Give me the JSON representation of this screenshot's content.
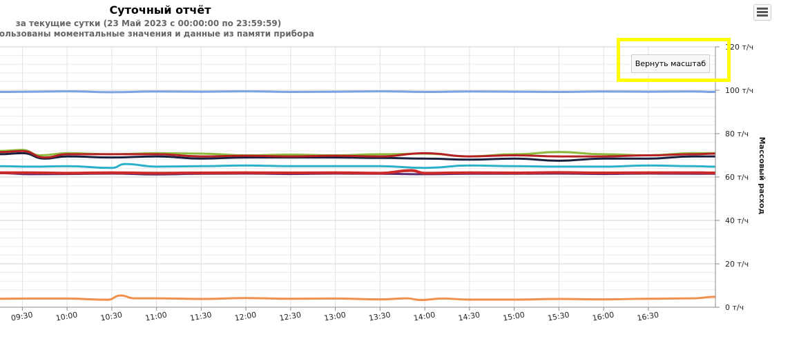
{
  "chart_data": {
    "type": "line",
    "title": "Суточный отчёт",
    "subtitle_1": "за текущие сутки (23 Май 2023 с 00:00:00 по 23:59:59)",
    "subtitle_2": "использованы моментальные значения и данные из памяти прибора",
    "ylabel": "Массовый расход",
    "ylim": [
      0,
      120
    ],
    "y_ticks": [
      "0 т/ч",
      "20 т/ч",
      "40 т/ч",
      "60 т/ч",
      "80 т/ч",
      "100 т/ч",
      "120 т/ч"
    ],
    "y_tick_values": [
      0,
      20,
      40,
      60,
      80,
      100,
      120
    ],
    "x_range_hours": [
      9.25,
      17.25
    ],
    "x_ticks": [
      "09:30",
      "10:00",
      "10:30",
      "11:00",
      "11:30",
      "12:00",
      "12:30",
      "13:00",
      "13:30",
      "14:00",
      "14:30",
      "15:00",
      "15:30",
      "16:00",
      "16:30"
    ],
    "x_tick_hours": [
      9.5,
      10.0,
      10.5,
      11.0,
      11.5,
      12.0,
      12.5,
      13.0,
      13.5,
      14.0,
      14.5,
      15.0,
      15.5,
      16.0,
      16.5
    ],
    "grid": true,
    "series": [
      {
        "color": "#7aa3e5",
        "width": 3,
        "x": [
          9.25,
          9.6,
          10.0,
          10.5,
          11.0,
          11.5,
          12.0,
          12.5,
          13.0,
          13.5,
          14.0,
          14.5,
          15.0,
          15.5,
          16.0,
          16.5,
          17.0,
          17.25
        ],
        "y": [
          99.2,
          99.3,
          99.5,
          99.1,
          99.4,
          99.3,
          99.5,
          99.2,
          99.3,
          99.5,
          99.2,
          99.4,
          99.3,
          99.2,
          99.4,
          99.3,
          99.4,
          99.2
        ]
      },
      {
        "color": "#8db83a",
        "width": 3,
        "x": [
          9.25,
          9.5,
          9.7,
          10.0,
          10.5,
          11.0,
          11.5,
          12.0,
          12.5,
          13.0,
          13.5,
          14.0,
          14.5,
          15.0,
          15.5,
          16.0,
          16.5,
          17.0,
          17.25
        ],
        "y": [
          72.0,
          72.5,
          70.0,
          71.0,
          70.5,
          71.0,
          70.8,
          70.0,
          70.3,
          70.0,
          70.5,
          70.8,
          69.5,
          70.5,
          71.5,
          70.5,
          70.0,
          71.0,
          71.0
        ]
      },
      {
        "color": "#2bb0c9",
        "width": 3,
        "x": [
          9.25,
          9.6,
          10.0,
          10.5,
          10.65,
          11.0,
          11.5,
          12.0,
          12.5,
          13.0,
          13.5,
          14.0,
          14.5,
          15.0,
          15.5,
          16.0,
          16.5,
          17.0,
          17.25
        ],
        "y": [
          65.0,
          64.8,
          65.0,
          64.2,
          66.0,
          64.8,
          65.0,
          65.3,
          65.0,
          65.0,
          65.0,
          64.2,
          65.3,
          65.0,
          64.8,
          64.8,
          65.3,
          65.0,
          64.8
        ]
      },
      {
        "color": "#1a1f3d",
        "width": 3,
        "x": [
          9.25,
          9.5,
          9.75,
          10.0,
          10.5,
          11.0,
          11.5,
          12.0,
          12.5,
          13.0,
          13.5,
          14.0,
          14.5,
          15.0,
          15.5,
          16.0,
          16.5,
          17.0,
          17.25
        ],
        "y": [
          70.5,
          71.0,
          68.5,
          69.5,
          69.0,
          69.5,
          68.5,
          69.0,
          69.0,
          69.0,
          68.8,
          68.5,
          68.0,
          68.5,
          67.5,
          68.5,
          68.5,
          69.5,
          69.5
        ]
      },
      {
        "color": "#b52025",
        "width": 3,
        "x": [
          9.25,
          9.5,
          9.75,
          10.0,
          10.5,
          11.0,
          11.5,
          12.0,
          12.5,
          13.0,
          13.5,
          14.0,
          14.5,
          15.0,
          15.5,
          16.0,
          16.5,
          17.0,
          17.25
        ],
        "y": [
          71.5,
          72.0,
          69.0,
          70.5,
          70.5,
          70.5,
          69.5,
          69.8,
          69.5,
          69.8,
          69.5,
          71.0,
          69.5,
          70.0,
          69.5,
          69.5,
          70.0,
          70.5,
          70.8
        ]
      },
      {
        "color": "#5a2a73",
        "width": 3,
        "x": [
          9.25,
          9.6,
          10.0,
          10.5,
          11.0,
          11.5,
          12.0,
          12.5,
          13.0,
          13.5,
          14.0,
          14.5,
          15.0,
          15.5,
          16.0,
          16.5,
          17.0,
          17.25
        ],
        "y": [
          61.8,
          61.3,
          61.4,
          61.6,
          61.2,
          61.5,
          61.6,
          61.4,
          61.6,
          61.5,
          61.3,
          61.5,
          61.5,
          61.6,
          61.4,
          61.6,
          61.5,
          61.5
        ]
      },
      {
        "color": "#cc2a2a",
        "width": 4,
        "x": [
          9.25,
          9.6,
          10.0,
          10.5,
          11.0,
          11.5,
          12.0,
          12.5,
          13.0,
          13.5,
          13.85,
          14.0,
          14.5,
          15.0,
          15.5,
          16.0,
          16.5,
          17.0,
          17.25
        ],
        "y": [
          62.0,
          62.0,
          61.8,
          62.0,
          61.8,
          61.9,
          62.0,
          61.9,
          62.0,
          61.8,
          63.0,
          61.8,
          62.0,
          61.9,
          62.1,
          61.9,
          62.0,
          62.0,
          61.9
        ]
      },
      {
        "color": "#f0904a",
        "width": 3,
        "x": [
          9.25,
          9.6,
          10.0,
          10.45,
          10.6,
          10.75,
          11.0,
          11.5,
          12.0,
          12.5,
          13.0,
          13.5,
          13.8,
          13.95,
          14.2,
          14.5,
          15.0,
          15.5,
          16.0,
          16.5,
          17.0,
          17.25
        ],
        "y": [
          3.9,
          4.0,
          4.0,
          3.4,
          5.4,
          4.1,
          4.1,
          3.8,
          4.2,
          3.9,
          4.0,
          3.6,
          4.1,
          3.3,
          4.0,
          3.5,
          3.5,
          3.8,
          3.6,
          3.9,
          4.1,
          4.8
        ]
      }
    ]
  },
  "controls": {
    "reset_zoom_label": "Вернуть масштаб",
    "menu_icon": "hamburger-menu-icon"
  },
  "colors": {
    "highlight": "#ffff00",
    "grid": "#e6e6e6",
    "axis": "#888888"
  }
}
